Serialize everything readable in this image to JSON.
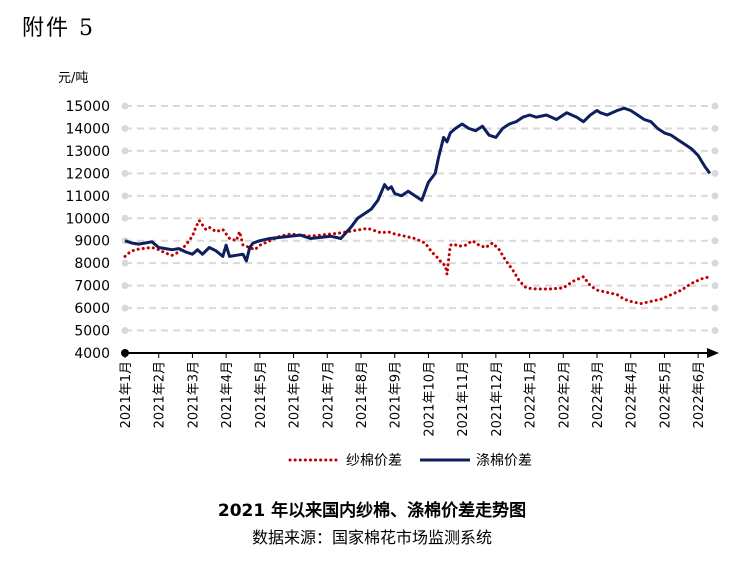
{
  "attachment_label": "附件 5",
  "colors": {
    "yarn": "#C00000",
    "polyester": "#0D1F5C",
    "grid": "#D9D9D9",
    "axis": "#000000"
  },
  "chart_data": {
    "type": "line",
    "title": "2021 年以来国内纱棉、涤棉价差走势图",
    "source": "数据来源：国家棉花市场监测系统",
    "ylabel": "元/吨",
    "ylim": [
      4000,
      15000
    ],
    "yticks": [
      4000,
      5000,
      6000,
      7000,
      8000,
      9000,
      10000,
      11000,
      12000,
      13000,
      14000,
      15000
    ],
    "xticks": [
      "2021年1月",
      "2021年2月",
      "2021年3月",
      "2021年4月",
      "2021年5月",
      "2021年6月",
      "2021年7月",
      "2021年8月",
      "2021年9月",
      "2021年10月",
      "2021年11月",
      "2021年12月",
      "2022年1月",
      "2022年2月",
      "2022年3月",
      "2022年4月",
      "2022年5月",
      "2022年6月"
    ],
    "xlim": [
      0,
      17.5
    ],
    "grid": true,
    "legend_position": "bottom",
    "series": [
      {
        "name": "纱棉价差",
        "style": "dotted",
        "color": "#C00000",
        "x": [
          0.0,
          0.15,
          0.3,
          0.5,
          0.8,
          1.0,
          1.2,
          1.4,
          1.6,
          1.8,
          2.0,
          2.1,
          2.2,
          2.3,
          2.4,
          2.5,
          2.7,
          2.9,
          3.1,
          3.3,
          3.4,
          3.5,
          3.7,
          3.85,
          4.0,
          4.3,
          4.6,
          4.9,
          5.2,
          5.5,
          5.8,
          6.1,
          6.4,
          6.6,
          6.8,
          7.0,
          7.2,
          7.4,
          7.6,
          7.8,
          8.0,
          8.3,
          8.6,
          8.9,
          9.1,
          9.3,
          9.4,
          9.5,
          9.55,
          9.6,
          9.65,
          9.75,
          9.9,
          10.1,
          10.3,
          10.5,
          10.7,
          10.9,
          11.1,
          11.3,
          11.5,
          11.7,
          11.9,
          12.2,
          12.6,
          13.0,
          13.3,
          13.6,
          13.8,
          14.0,
          14.3,
          14.6,
          14.8,
          15.0,
          15.3,
          15.6,
          15.9,
          16.2,
          16.5,
          16.8,
          17.1,
          17.35
        ],
        "values": [
          8300,
          8500,
          8600,
          8650,
          8700,
          8600,
          8450,
          8350,
          8500,
          8800,
          9200,
          9600,
          9900,
          9700,
          9500,
          9600,
          9400,
          9500,
          9100,
          9000,
          9400,
          8800,
          8700,
          8600,
          8800,
          9000,
          9200,
          9300,
          9250,
          9200,
          9250,
          9300,
          9350,
          9400,
          9450,
          9500,
          9550,
          9450,
          9350,
          9400,
          9300,
          9200,
          9100,
          8900,
          8500,
          8200,
          8000,
          7900,
          7500,
          8200,
          8800,
          8850,
          8750,
          8800,
          9000,
          8800,
          8700,
          8900,
          8600,
          8100,
          7700,
          7200,
          6900,
          6850,
          6850,
          6900,
          7200,
          7400,
          7000,
          6800,
          6700,
          6600,
          6400,
          6300,
          6200,
          6300,
          6400,
          6600,
          6800,
          7100,
          7300,
          7400
        ]
      },
      {
        "name": "涤棉价差",
        "style": "solid",
        "color": "#0D1F5C",
        "x": [
          0.0,
          0.2,
          0.4,
          0.6,
          0.8,
          1.0,
          1.2,
          1.4,
          1.6,
          1.8,
          2.0,
          2.15,
          2.3,
          2.5,
          2.7,
          2.9,
          3.0,
          3.1,
          3.3,
          3.5,
          3.6,
          3.7,
          3.8,
          4.0,
          4.3,
          4.6,
          4.9,
          5.2,
          5.5,
          5.8,
          6.1,
          6.4,
          6.7,
          6.9,
          7.1,
          7.3,
          7.5,
          7.7,
          7.8,
          7.9,
          8.0,
          8.2,
          8.4,
          8.6,
          8.8,
          9.0,
          9.2,
          9.3,
          9.45,
          9.55,
          9.65,
          9.8,
          10.0,
          10.2,
          10.4,
          10.6,
          10.8,
          11.0,
          11.2,
          11.4,
          11.6,
          11.8,
          12.0,
          12.2,
          12.5,
          12.8,
          13.1,
          13.4,
          13.6,
          13.8,
          14.0,
          14.1,
          14.3,
          14.6,
          14.8,
          15.0,
          15.2,
          15.4,
          15.6,
          15.8,
          16.0,
          16.2,
          16.4,
          16.6,
          16.8,
          17.0,
          17.2,
          17.35
        ],
        "values": [
          9000,
          8900,
          8850,
          8900,
          8950,
          8700,
          8650,
          8600,
          8650,
          8500,
          8400,
          8600,
          8400,
          8700,
          8550,
          8300,
          8800,
          8300,
          8350,
          8400,
          8100,
          8700,
          8900,
          9000,
          9100,
          9150,
          9200,
          9250,
          9100,
          9150,
          9200,
          9100,
          9600,
          10000,
          10200,
          10400,
          10800,
          11500,
          11300,
          11400,
          11100,
          11000,
          11200,
          11000,
          10800,
          11600,
          12000,
          12700,
          13600,
          13400,
          13800,
          14000,
          14200,
          14000,
          13900,
          14100,
          13700,
          13600,
          14000,
          14200,
          14300,
          14500,
          14600,
          14500,
          14600,
          14400,
          14700,
          14500,
          14300,
          14600,
          14800,
          14700,
          14600,
          14800,
          14900,
          14800,
          14600,
          14400,
          14300,
          14000,
          13800,
          13700,
          13500,
          13300,
          13100,
          12800,
          12300,
          12000
        ]
      }
    ]
  }
}
